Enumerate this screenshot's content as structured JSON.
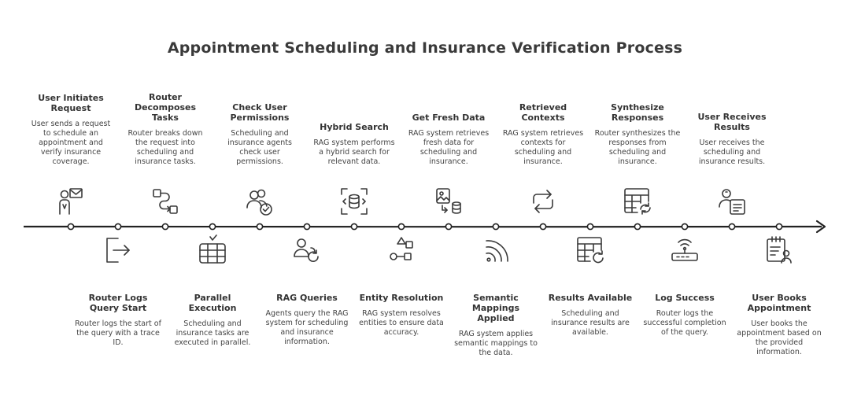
{
  "title": "Appointment Scheduling and Insurance Verification Process",
  "steps": [
    {
      "title": "User Initiates Request",
      "desc": "User sends a request to schedule an appointment and verify insurance coverage.",
      "icon": "user-envelope-icon",
      "side": "top"
    },
    {
      "title": "Router Logs Query Start",
      "desc": "Router logs the start of the query with a trace ID.",
      "icon": "logout-arrow-icon",
      "side": "bottom"
    },
    {
      "title": "Router Decomposes Tasks",
      "desc": "Router breaks down the request into scheduling and insurance tasks.",
      "icon": "split-flow-icon",
      "side": "top"
    },
    {
      "title": "Parallel Execution",
      "desc": "Scheduling and insurance tasks are executed in parallel.",
      "icon": "server-stack-icon",
      "side": "bottom"
    },
    {
      "title": "Check User Permissions",
      "desc": "Scheduling and insurance agents check user permissions.",
      "icon": "users-check-icon",
      "side": "top"
    },
    {
      "title": "RAG Queries",
      "desc": "Agents query the RAG system for scheduling and insurance information.",
      "icon": "user-refresh-icon",
      "side": "bottom"
    },
    {
      "title": "Hybrid Search",
      "desc": "RAG system performs a hybrid search for relevant data.",
      "icon": "database-scan-icon",
      "side": "top"
    },
    {
      "title": "Entity Resolution",
      "desc": "RAG system resolves entities to ensure data accuracy.",
      "icon": "shapes-icon",
      "side": "bottom"
    },
    {
      "title": "Get Fresh Data",
      "desc": "RAG system retrieves fresh data for scheduling and insurance.",
      "icon": "image-database-icon",
      "side": "top"
    },
    {
      "title": "Semantic Mappings Applied",
      "desc": "RAG system applies semantic mappings to the data.",
      "icon": "signal-icon",
      "side": "bottom"
    },
    {
      "title": "Retrieved Contexts",
      "desc": "RAG system retrieves contexts for scheduling and insurance.",
      "icon": "repeat-icon",
      "side": "top"
    },
    {
      "title": "Results Available",
      "desc": "Scheduling and insurance results are available.",
      "icon": "table-refresh-icon",
      "side": "bottom"
    },
    {
      "title": "Synthesize Responses",
      "desc": "Router synthesizes the responses from scheduling and insurance.",
      "icon": "table-sync-icon",
      "side": "top"
    },
    {
      "title": "Log Success",
      "desc": "Router logs the successful completion of the query.",
      "icon": "router-icon",
      "side": "bottom"
    },
    {
      "title": "User Receives Results",
      "desc": "User receives the scheduling and insurance results.",
      "icon": "user-report-icon",
      "side": "top"
    },
    {
      "title": "User Books Appointment",
      "desc": "User books the appointment based on the provided information.",
      "icon": "clipboard-user-icon",
      "side": "bottom"
    }
  ]
}
